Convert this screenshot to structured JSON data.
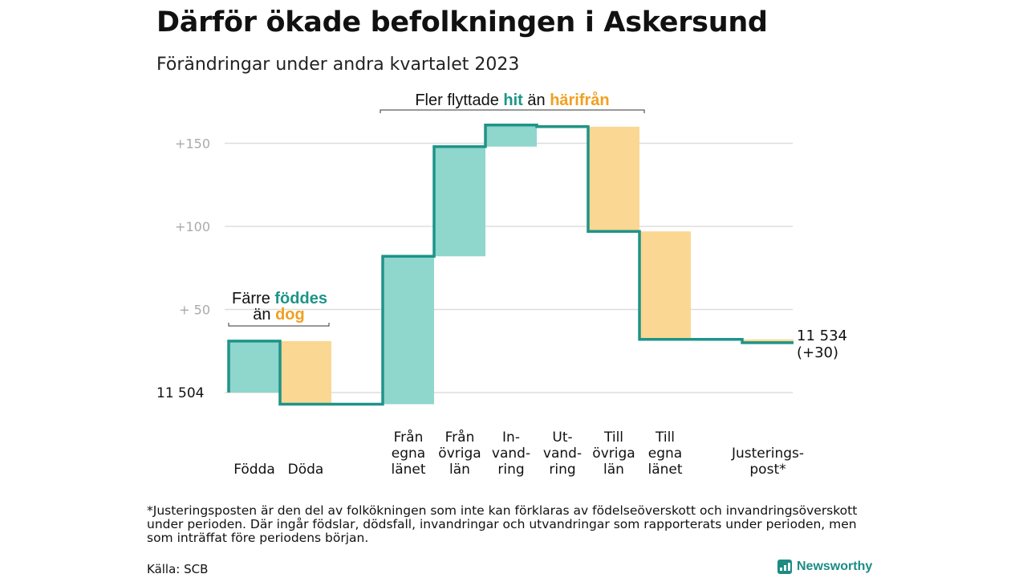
{
  "title": "Därför ökade befolkningen i Askersund",
  "subtitle": "Förändringar under andra kvartalet 2023",
  "footnote": "*Justeringsposten är den del av folkökningen som inte kan förklaras av födelseöverskott och invandringsöverskott under perioden. Där ingår födslar, dödsfall, invandringar och utvandringar som rapporterats under perioden, men som inträffat före periodens början.",
  "source": "Källa: SCB",
  "logo": "Newsworthy",
  "colors": {
    "positive": "#8fd6cd",
    "negative": "#fad793",
    "line": "#1e9488",
    "grid": "#dddddd",
    "pos_text": "#1e9488",
    "neg_text": "#f0a020"
  },
  "chart_data": {
    "type": "waterfall",
    "title": "Därför ökade befolkningen i Askersund",
    "subtitle": "Förändringar under andra kvartalet 2023",
    "start_value": 11504,
    "start_label": "11  504",
    "end_label_lines": [
      "11 534",
      "(+30)"
    ],
    "ylim": [
      -8,
      168
    ],
    "yticks": [
      {
        "value": 0,
        "label": ""
      },
      {
        "value": 50,
        "label": "+  50"
      },
      {
        "value": 100,
        "label": "+100"
      },
      {
        "value": 150,
        "label": "+150"
      }
    ],
    "grid": true,
    "steps": [
      {
        "label_lines": [
          "Födda"
        ],
        "change": 31
      },
      {
        "label_lines": [
          "Döda"
        ],
        "change": -38
      },
      {
        "label_lines": [
          ""
        ],
        "change": 0
      },
      {
        "label_lines": [
          "Från",
          "egna",
          "länet"
        ],
        "change": 89
      },
      {
        "label_lines": [
          "Från",
          "övriga",
          "län"
        ],
        "change": 66
      },
      {
        "label_lines": [
          "In-",
          "vand-",
          "ring"
        ],
        "change": 13
      },
      {
        "label_lines": [
          "Ut-",
          "vand-",
          "ring"
        ],
        "change": -1
      },
      {
        "label_lines": [
          "Till",
          "övriga",
          "län"
        ],
        "change": -63
      },
      {
        "label_lines": [
          "Till",
          "egna",
          "länet"
        ],
        "change": -65
      },
      {
        "label_lines": [
          ""
        ],
        "change": 0
      },
      {
        "label_lines": [
          "Justerings-",
          "post*"
        ],
        "change": -2
      }
    ],
    "annotations": [
      {
        "text_parts": [
          {
            "t": "Färre ",
            "style": "plain"
          },
          {
            "t": "föddes",
            "style": "pos"
          }
        ],
        "text_parts2": [
          {
            "t": "än ",
            "style": "plain"
          },
          {
            "t": "dog",
            "style": "neg"
          }
        ],
        "from_step": 0,
        "to_step": 1
      },
      {
        "text_parts": [
          {
            "t": "Fler flyttade ",
            "style": "plain"
          },
          {
            "t": "hit",
            "style": "pos"
          },
          {
            "t": " än ",
            "style": "plain"
          },
          {
            "t": "härifrån",
            "style": "neg"
          }
        ],
        "from_step": 3,
        "to_step": 8
      }
    ]
  }
}
